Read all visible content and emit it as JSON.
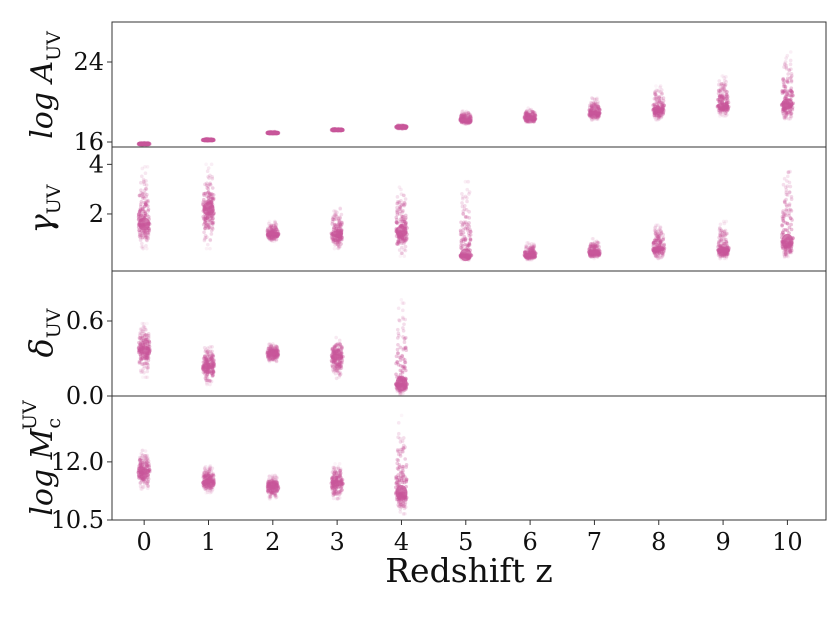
{
  "chart_data": {
    "type": "scatter",
    "point_color": "#c8569a",
    "xlabel": "Redshift z",
    "x_ticks": [
      "0",
      "1",
      "2",
      "3",
      "4",
      "5",
      "6",
      "7",
      "8",
      "9",
      "10"
    ],
    "xlim": [
      -0.5,
      10.6
    ],
    "panels": [
      {
        "ylabel_main": "log A",
        "ylabel_sub": "UV",
        "yticks": [
          "24",
          "16"
        ],
        "ytick_values": [
          24,
          16
        ],
        "ylim": [
          15.5,
          28
        ],
        "columns": [
          {
            "x": 0,
            "median": 15.8,
            "lo": 15.7,
            "hi": 15.95
          },
          {
            "x": 1,
            "median": 16.2,
            "lo": 16.1,
            "hi": 16.35
          },
          {
            "x": 2,
            "median": 16.9,
            "lo": 16.8,
            "hi": 17.05
          },
          {
            "x": 3,
            "median": 17.2,
            "lo": 17.1,
            "hi": 17.35
          },
          {
            "x": 4,
            "median": 17.5,
            "lo": 17.3,
            "hi": 17.7
          },
          {
            "x": 5,
            "median": 18.2,
            "lo": 17.8,
            "hi": 19.1
          },
          {
            "x": 6,
            "median": 18.4,
            "lo": 17.9,
            "hi": 19.4
          },
          {
            "x": 7,
            "median": 18.9,
            "lo": 18.2,
            "hi": 20.4
          },
          {
            "x": 8,
            "median": 19.3,
            "lo": 18.2,
            "hi": 21.6
          },
          {
            "x": 9,
            "median": 19.6,
            "lo": 18.6,
            "hi": 22.6
          },
          {
            "x": 10,
            "median": 19.8,
            "lo": 18.1,
            "hi": 25.0
          }
        ]
      },
      {
        "ylabel_main": "γ",
        "ylabel_sub": "UV",
        "yticks": [
          "4",
          "2"
        ],
        "ytick_values": [
          4,
          2
        ],
        "ylim": [
          -0.3,
          4.7
        ],
        "columns": [
          {
            "x": 0,
            "median": 1.6,
            "lo": 0.6,
            "hi": 3.9
          },
          {
            "x": 1,
            "median": 2.2,
            "lo": 0.6,
            "hi": 4.0
          },
          {
            "x": 2,
            "median": 1.2,
            "lo": 0.9,
            "hi": 1.7
          },
          {
            "x": 3,
            "median": 1.2,
            "lo": 0.6,
            "hi": 2.3
          },
          {
            "x": 4,
            "median": 1.3,
            "lo": 0.3,
            "hi": 3.1
          },
          {
            "x": 5,
            "median": 0.35,
            "lo": 0.15,
            "hi": 3.3
          },
          {
            "x": 6,
            "median": 0.35,
            "lo": 0.15,
            "hi": 0.85
          },
          {
            "x": 7,
            "median": 0.45,
            "lo": 0.2,
            "hi": 1.0
          },
          {
            "x": 8,
            "median": 0.6,
            "lo": 0.2,
            "hi": 1.6
          },
          {
            "x": 9,
            "median": 0.55,
            "lo": 0.2,
            "hi": 1.7
          },
          {
            "x": 10,
            "median": 0.9,
            "lo": 0.25,
            "hi": 4.0
          }
        ]
      },
      {
        "ylabel_main": "δ",
        "ylabel_sub": "UV",
        "yticks": [
          "0.6",
          "0.0"
        ],
        "ytick_values": [
          0.6,
          0.0
        ],
        "ylim": [
          0.0,
          1.0
        ],
        "columns": [
          {
            "x": 0,
            "median": 0.37,
            "lo": 0.15,
            "hi": 0.58
          },
          {
            "x": 1,
            "median": 0.24,
            "lo": 0.09,
            "hi": 0.43
          },
          {
            "x": 2,
            "median": 0.34,
            "lo": 0.27,
            "hi": 0.42
          },
          {
            "x": 3,
            "median": 0.31,
            "lo": 0.14,
            "hi": 0.48
          },
          {
            "x": 4,
            "median": 0.1,
            "lo": 0.01,
            "hi": 0.77
          }
        ]
      },
      {
        "ylabel_main": "log M",
        "ylabel_sub": "c",
        "ylabel_sup": "UV",
        "yticks": [
          "12.0",
          "10.5"
        ],
        "ytick_values": [
          12.0,
          10.5
        ],
        "ylim": [
          10.5,
          13.7
        ],
        "columns": [
          {
            "x": 0,
            "median": 11.75,
            "lo": 11.3,
            "hi": 12.3
          },
          {
            "x": 1,
            "median": 11.5,
            "lo": 11.2,
            "hi": 11.9
          },
          {
            "x": 2,
            "median": 11.35,
            "lo": 11.05,
            "hi": 11.65
          },
          {
            "x": 3,
            "median": 11.45,
            "lo": 11.05,
            "hi": 11.95
          },
          {
            "x": 4,
            "median": 11.2,
            "lo": 10.65,
            "hi": 13.2
          }
        ]
      }
    ]
  }
}
